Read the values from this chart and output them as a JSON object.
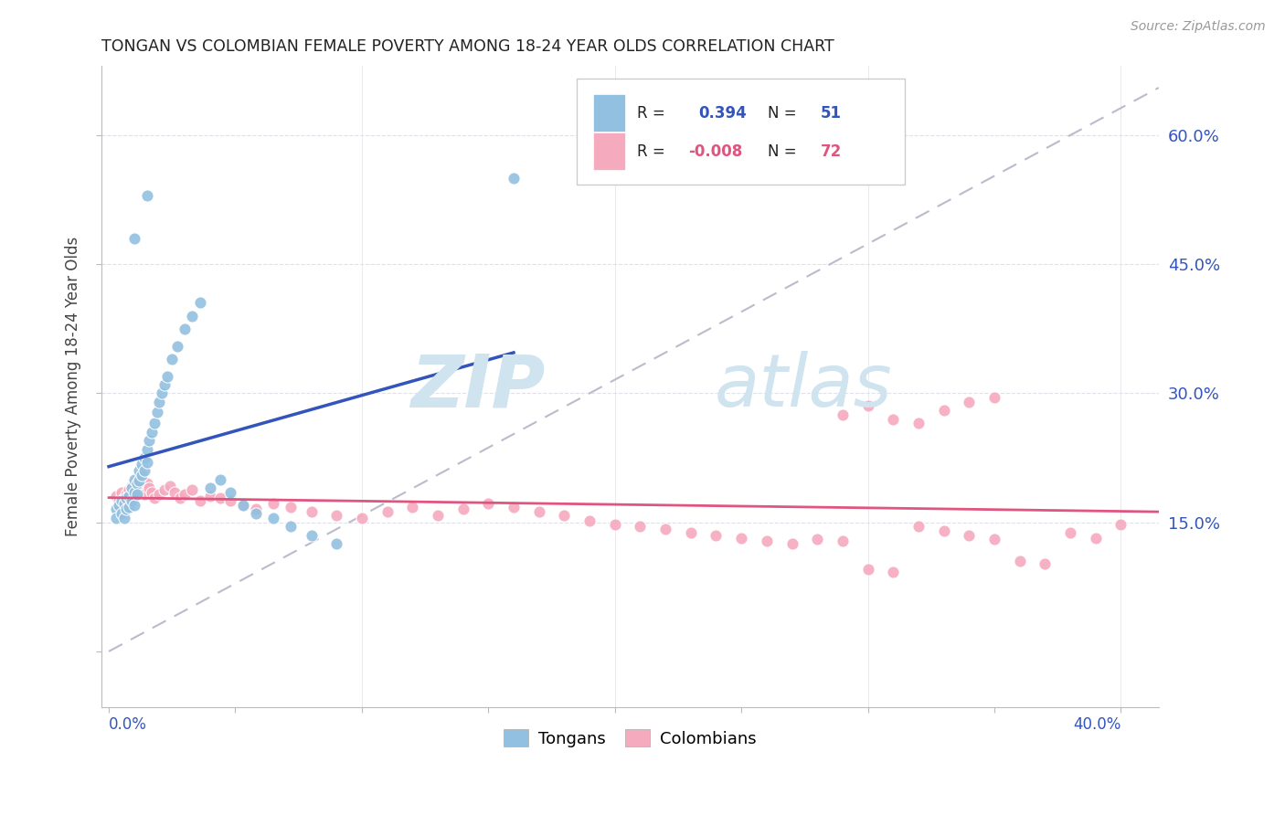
{
  "title": "TONGAN VS COLOMBIAN FEMALE POVERTY AMONG 18-24 YEAR OLDS CORRELATION CHART",
  "source": "Source: ZipAtlas.com",
  "ylabel": "Female Poverty Among 18-24 Year Olds",
  "right_yticks": [
    0.15,
    0.3,
    0.45,
    0.6
  ],
  "right_yticklabels": [
    "15.0%",
    "30.0%",
    "45.0%",
    "60.0%"
  ],
  "xlim": [
    -0.003,
    0.415
  ],
  "ylim": [
    -0.065,
    0.68
  ],
  "tongan_R": "0.394",
  "tongan_N": "51",
  "colombian_R": "-0.008",
  "colombian_N": "72",
  "tongan_color": "#92C0E0",
  "colombian_color": "#F5AABE",
  "tongan_line_color": "#3355BB",
  "colombian_line_color": "#E05580",
  "ref_line_color": "#BBBBCC",
  "background_color": "#FFFFFF",
  "watermark_zip": "ZIP",
  "watermark_atlas": "atlas",
  "watermark_color": "#D0E4F0",
  "grid_color": "#E0E0E8",
  "spine_color": "#BBBBBB",
  "tongan_x": [
    0.003,
    0.003,
    0.004,
    0.005,
    0.005,
    0.006,
    0.006,
    0.007,
    0.007,
    0.008,
    0.008,
    0.009,
    0.009,
    0.01,
    0.01,
    0.01,
    0.011,
    0.011,
    0.012,
    0.012,
    0.013,
    0.013,
    0.014,
    0.014,
    0.015,
    0.015,
    0.016,
    0.017,
    0.018,
    0.019,
    0.02,
    0.021,
    0.022,
    0.023,
    0.025,
    0.027,
    0.03,
    0.033,
    0.036,
    0.04,
    0.044,
    0.048,
    0.053,
    0.058,
    0.065,
    0.072,
    0.08,
    0.09,
    0.01,
    0.015,
    0.16
  ],
  "tongan_y": [
    0.165,
    0.155,
    0.17,
    0.175,
    0.16,
    0.172,
    0.155,
    0.178,
    0.165,
    0.18,
    0.168,
    0.19,
    0.175,
    0.2,
    0.185,
    0.17,
    0.195,
    0.182,
    0.21,
    0.198,
    0.218,
    0.205,
    0.225,
    0.21,
    0.235,
    0.22,
    0.245,
    0.255,
    0.265,
    0.278,
    0.29,
    0.3,
    0.31,
    0.32,
    0.34,
    0.355,
    0.375,
    0.39,
    0.405,
    0.19,
    0.2,
    0.185,
    0.17,
    0.16,
    0.155,
    0.145,
    0.135,
    0.125,
    0.48,
    0.53,
    0.55
  ],
  "colombian_x": [
    0.003,
    0.004,
    0.005,
    0.005,
    0.006,
    0.007,
    0.008,
    0.009,
    0.01,
    0.011,
    0.012,
    0.013,
    0.014,
    0.015,
    0.016,
    0.017,
    0.018,
    0.02,
    0.022,
    0.024,
    0.026,
    0.028,
    0.03,
    0.033,
    0.036,
    0.04,
    0.044,
    0.048,
    0.053,
    0.058,
    0.065,
    0.072,
    0.08,
    0.09,
    0.1,
    0.11,
    0.12,
    0.13,
    0.14,
    0.15,
    0.16,
    0.17,
    0.18,
    0.19,
    0.2,
    0.21,
    0.22,
    0.23,
    0.24,
    0.25,
    0.26,
    0.27,
    0.28,
    0.29,
    0.3,
    0.31,
    0.32,
    0.33,
    0.34,
    0.35,
    0.36,
    0.37,
    0.38,
    0.39,
    0.4,
    0.29,
    0.3,
    0.31,
    0.32,
    0.33,
    0.34,
    0.35
  ],
  "colombian_y": [
    0.18,
    0.175,
    0.185,
    0.17,
    0.178,
    0.182,
    0.188,
    0.192,
    0.195,
    0.19,
    0.185,
    0.188,
    0.182,
    0.195,
    0.19,
    0.185,
    0.178,
    0.182,
    0.188,
    0.192,
    0.185,
    0.178,
    0.182,
    0.188,
    0.175,
    0.18,
    0.178,
    0.175,
    0.17,
    0.165,
    0.172,
    0.168,
    0.162,
    0.158,
    0.155,
    0.162,
    0.168,
    0.158,
    0.165,
    0.172,
    0.168,
    0.162,
    0.158,
    0.152,
    0.148,
    0.145,
    0.142,
    0.138,
    0.135,
    0.132,
    0.128,
    0.125,
    0.13,
    0.128,
    0.095,
    0.092,
    0.145,
    0.14,
    0.135,
    0.13,
    0.105,
    0.102,
    0.138,
    0.132,
    0.148,
    0.275,
    0.285,
    0.27,
    0.265,
    0.28,
    0.29,
    0.295
  ]
}
